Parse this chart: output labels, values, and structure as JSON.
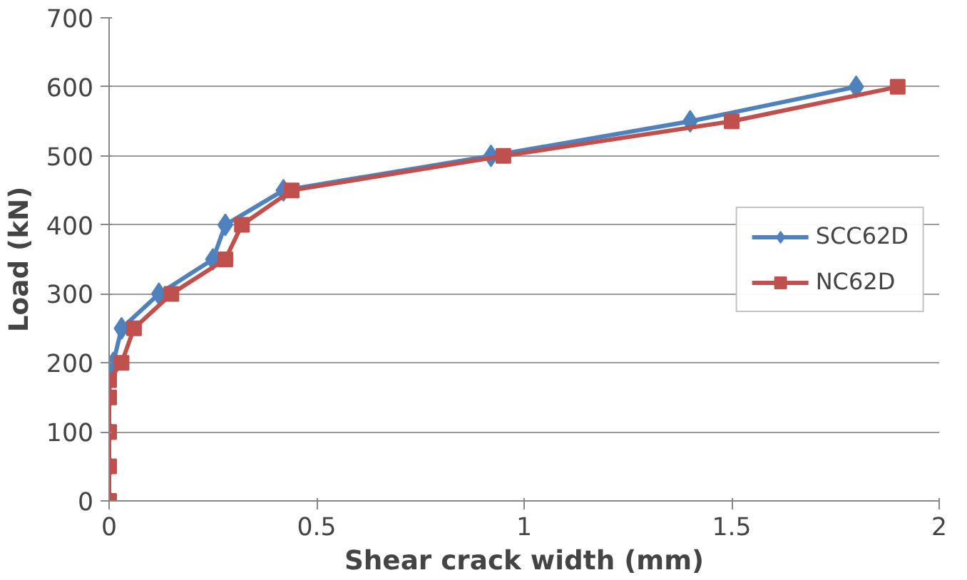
{
  "chart_data": {
    "type": "line",
    "xlabel": "Shear crack width (mm)",
    "ylabel": "Load (kN)",
    "xlim": [
      0,
      2
    ],
    "xticks": [
      0,
      0.5,
      1,
      1.5,
      2
    ],
    "ylim": [
      0,
      700
    ],
    "yticks": [
      0,
      100,
      200,
      300,
      400,
      500,
      600,
      700
    ],
    "grid": "y",
    "legend": "right",
    "line_style": "solid",
    "series": [
      {
        "name": "SCC62D",
        "color": "#4f81bd",
        "marker": "diamond",
        "x": [
          0,
          0,
          0,
          0,
          0,
          0.01,
          0.03,
          0.12,
          0.25,
          0.28,
          0.42,
          0.92,
          1.4,
          1.8
        ],
        "values": [
          0,
          50,
          100,
          150,
          175,
          200,
          250,
          300,
          350,
          400,
          450,
          500,
          550,
          600
        ]
      },
      {
        "name": "NC62D",
        "color": "#c0504d",
        "marker": "square",
        "x": [
          0,
          0,
          0,
          0,
          0,
          0.03,
          0.06,
          0.15,
          0.28,
          0.32,
          0.44,
          0.95,
          1.5,
          1.9
        ],
        "values": [
          0,
          50,
          100,
          150,
          175,
          200,
          250,
          300,
          350,
          400,
          450,
          500,
          550,
          600
        ]
      }
    ]
  }
}
